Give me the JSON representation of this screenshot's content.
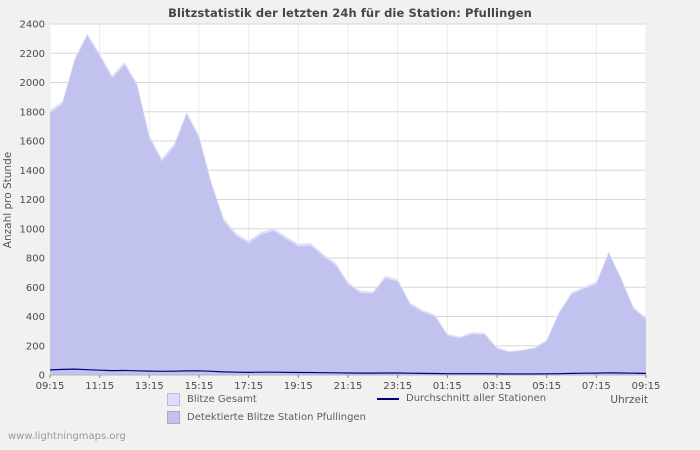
{
  "page": {
    "footer_link": "www.lightningmaps.org"
  },
  "chart_data": {
    "type": "area",
    "title": "Blitzstatistik der letzten 24h für die Station: Pfullingen",
    "xlabel": "Uhrzeit",
    "ylabel": "Anzahl pro Stunde",
    "ylim": [
      0,
      2400
    ],
    "ytick_step": 200,
    "grid": true,
    "legend_position": "bottom",
    "x_tick_labels": [
      "09:15",
      "11:15",
      "13:15",
      "15:15",
      "17:15",
      "19:15",
      "21:15",
      "23:15",
      "01:15",
      "03:15",
      "05:15",
      "07:15",
      "09:15"
    ],
    "x": [
      0,
      0.5,
      1,
      1.5,
      2,
      2.5,
      3,
      3.5,
      4,
      4.5,
      5,
      5.5,
      6,
      6.5,
      7,
      7.5,
      8,
      8.5,
      9,
      9.5,
      10,
      10.5,
      11,
      11.5,
      12,
      12.5,
      13,
      13.5,
      14,
      14.5,
      15,
      15.5,
      16,
      16.5,
      17,
      17.5,
      18,
      18.5,
      19,
      19.5,
      20,
      20.5,
      21,
      21.5,
      22,
      22.5,
      23,
      23.5,
      24
    ],
    "series": [
      {
        "name": "Blitze Gesamt",
        "type": "area",
        "color": "#dedefa",
        "values": [
          1812,
          1872,
          2168,
          2335,
          2198,
          2048,
          2140,
          2000,
          1642,
          1482,
          1582,
          1800,
          1642,
          1322,
          1072,
          968,
          918,
          978,
          1002,
          948,
          898,
          902,
          828,
          768,
          636,
          576,
          570,
          676,
          656,
          495,
          444,
          414,
          282,
          262,
          292,
          287,
          190,
          163,
          172,
          188,
          240,
          434,
          564,
          604,
          636,
          845,
          664,
          464,
          392
        ]
      },
      {
        "name": "Detektierte Blitze Station Pfullingen",
        "type": "area",
        "color": "#c2c2ee",
        "values": [
          1790,
          1850,
          2150,
          2320,
          2180,
          2030,
          2120,
          1980,
          1620,
          1460,
          1560,
          1780,
          1620,
          1300,
          1050,
          950,
          900,
          960,
          985,
          930,
          880,
          885,
          810,
          750,
          620,
          560,
          555,
          660,
          640,
          480,
          430,
          400,
          270,
          250,
          280,
          275,
          180,
          155,
          165,
          180,
          230,
          420,
          550,
          590,
          620,
          830,
          650,
          450,
          380
        ]
      },
      {
        "name": "Durchschnitt aller Stationen",
        "type": "line",
        "color": "#000080",
        "values": [
          35,
          38,
          40,
          36,
          33,
          30,
          31,
          29,
          27,
          25,
          26,
          28,
          29,
          25,
          21,
          19,
          18,
          19,
          19,
          18,
          17,
          17,
          16,
          15,
          14,
          13,
          13,
          14,
          14,
          12,
          11,
          10,
          9,
          9,
          9,
          9,
          8,
          7,
          7,
          7,
          8,
          9,
          11,
          12,
          13,
          15,
          14,
          12,
          11
        ]
      }
    ]
  }
}
